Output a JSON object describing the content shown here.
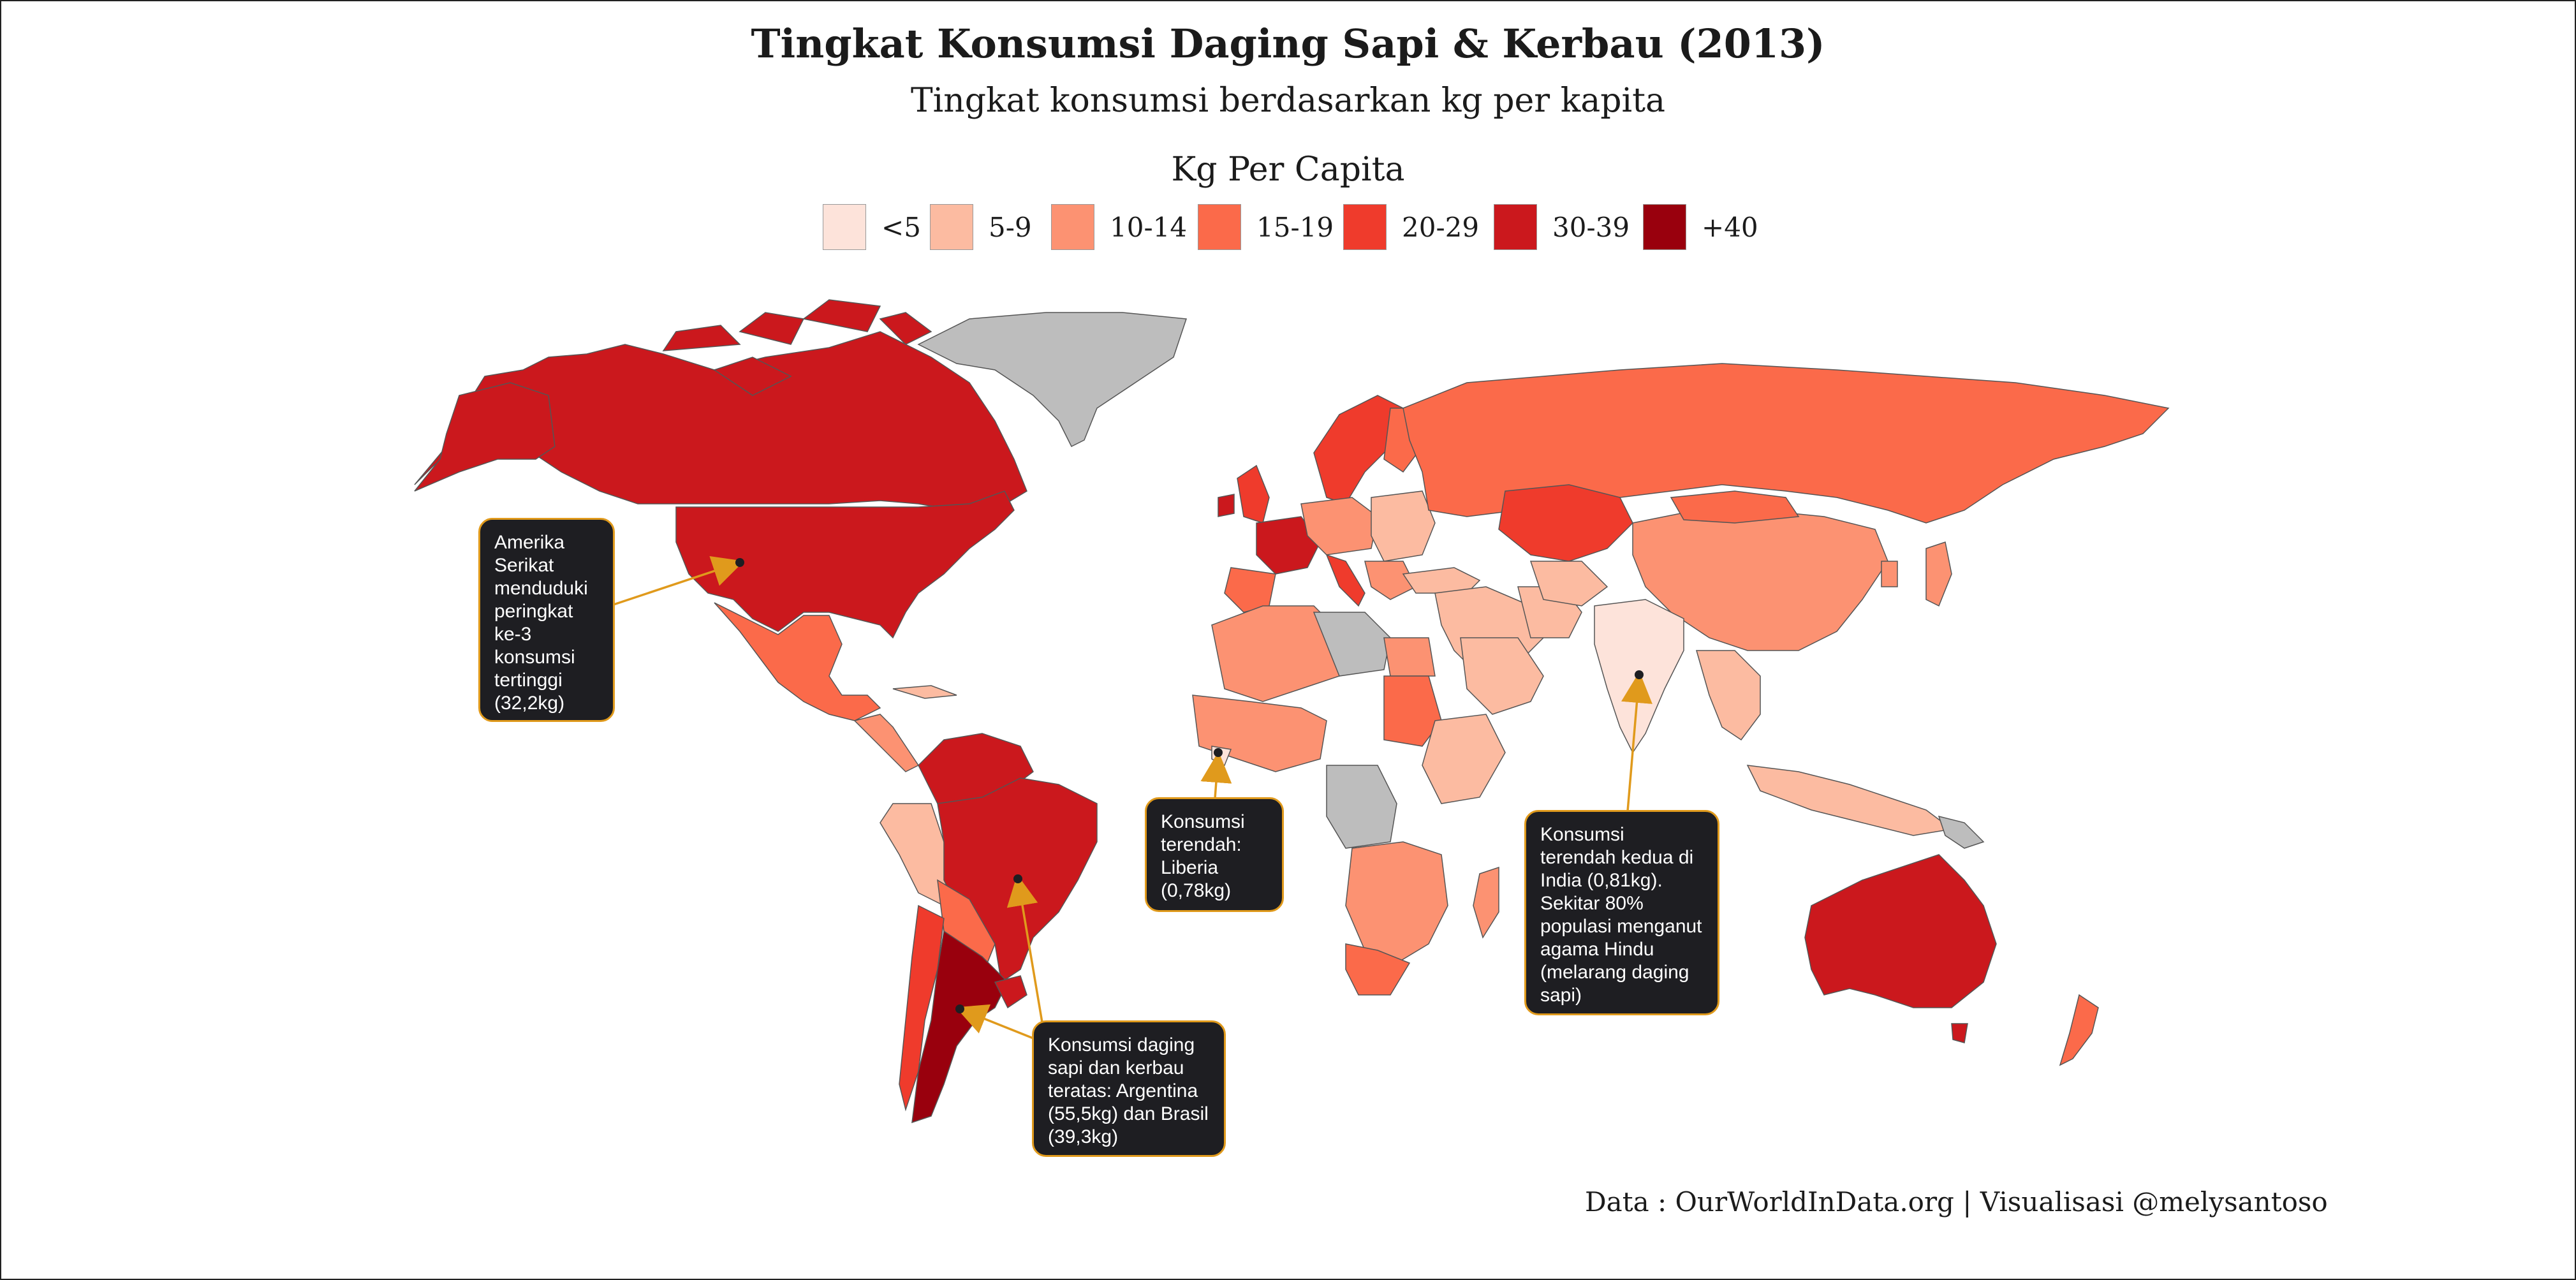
{
  "title": "Tingkat Konsumsi Daging Sapi & Kerbau (2013)",
  "subtitle": "Tingkat konsumsi berdasarkan kg per kapita",
  "legend": {
    "title": "Kg Per Capita",
    "items": [
      {
        "label": "<5",
        "color": "#fde3da"
      },
      {
        "label": "5-9",
        "color": "#fcbba1"
      },
      {
        "label": "10-14",
        "color": "#fc9272"
      },
      {
        "label": "15-19",
        "color": "#fb6a4a"
      },
      {
        "label": "20-29",
        "color": "#ef3b2c"
      },
      {
        "label": "30-39",
        "color": "#cb181d"
      },
      {
        "label": "+40",
        "color": "#99000d"
      }
    ],
    "no_data_color": "#bdbdbd"
  },
  "callouts": {
    "usa": "Amerika Serikat menduduki peringkat ke-3 konsumsi tertinggi (32,2kg)",
    "liberia": "Konsumsi terendah: Liberia (0,78kg)",
    "india": "Konsumsi terendah kedua di India (0,81kg). Sekitar 80% populasi menganut agama Hindu (melarang daging sapi)",
    "argentina": "Konsumsi daging sapi dan kerbau teratas: Argentina (55,5kg) dan Brasil (39,3kg)"
  },
  "credit": "Data : OurWorldInData.org | Visualisasi @melysantoso",
  "colors": {
    "callout_bg": "#1e1e22",
    "callout_border": "#e09a1c",
    "arrow": "#e09a1c"
  }
}
